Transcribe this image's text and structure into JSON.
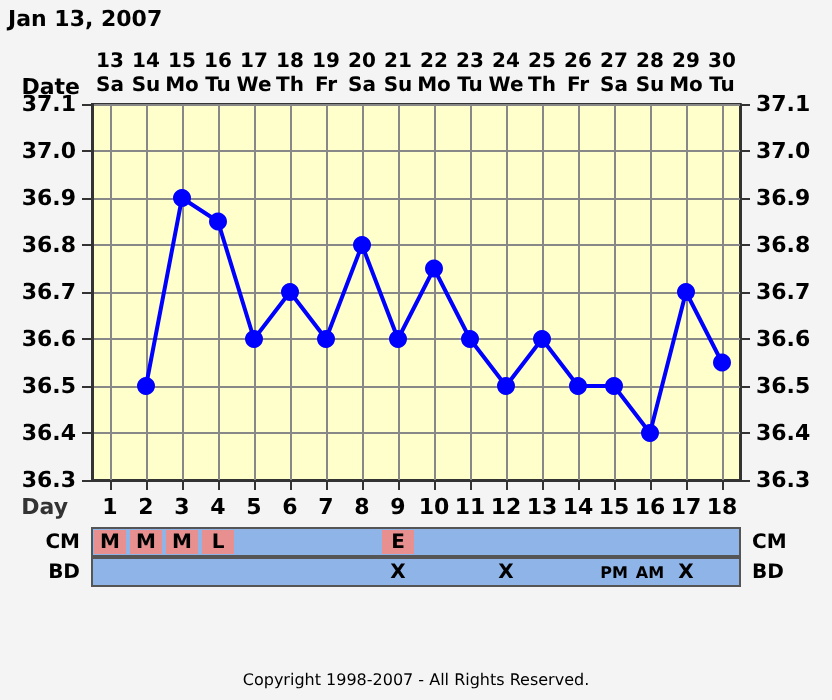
{
  "chart_data": {
    "type": "line",
    "title": "Jan 13, 2007",
    "xlabel": "Day",
    "x": [
      2,
      3,
      4,
      5,
      6,
      7,
      8,
      9,
      10,
      11,
      12,
      13,
      14,
      15,
      16,
      17,
      18
    ],
    "series": [
      {
        "color": "#0000ff",
        "values": [
          36.5,
          36.9,
          36.85,
          36.6,
          36.7,
          36.6,
          36.8,
          36.6,
          36.75,
          36.6,
          36.5,
          36.6,
          36.5,
          36.5,
          36.4,
          36.7,
          36.55
        ]
      }
    ],
    "xlim": [
      0.5,
      18.5
    ],
    "xticks": [
      1,
      2,
      3,
      4,
      5,
      6,
      7,
      8,
      9,
      10,
      11,
      12,
      13,
      14,
      15,
      16,
      17,
      18
    ],
    "ylim": [
      36.3,
      37.1
    ],
    "yticks": [
      {
        "value": 36.3,
        "label": "36.3"
      },
      {
        "value": 36.4,
        "label": "36.4"
      },
      {
        "value": 36.5,
        "label": "36.5"
      },
      {
        "value": 36.6,
        "label": "36.6"
      },
      {
        "value": 36.7,
        "label": "36.7"
      },
      {
        "value": 36.8,
        "label": "36.8"
      },
      {
        "value": 36.9,
        "label": "36.9"
      },
      {
        "value": 37.0,
        "label": "37.0"
      },
      {
        "value": 37.1,
        "label": "37.1"
      }
    ],
    "y2lim": [
      36.3,
      37.1
    ],
    "y2ticks": [
      {
        "value": 36.3,
        "label": "36.3"
      },
      {
        "value": 36.4,
        "label": "36.4"
      },
      {
        "value": 36.5,
        "label": "36.5"
      },
      {
        "value": 36.6,
        "label": "36.6"
      },
      {
        "value": 36.7,
        "label": "36.7"
      },
      {
        "value": 36.8,
        "label": "36.8"
      },
      {
        "value": 36.9,
        "label": "36.9"
      },
      {
        "value": 37.0,
        "label": "37.0"
      },
      {
        "value": 37.1,
        "label": "37.1"
      }
    ],
    "grid": true,
    "marker": "circle",
    "line_style": "solid",
    "annotations": [
      "Date",
      "13 Sa",
      "14 Su",
      "15 Mo",
      "16 Tu",
      "17 We",
      "18 Th",
      "19 Fr",
      "20 Sa",
      "21 Su",
      "22 Mo",
      "23 Tu",
      "24 We",
      "25 Th",
      "26 Fr",
      "27 Sa",
      "28 Su",
      "29 Mo",
      "30 Tu",
      "CM",
      "M",
      "M",
      "M",
      "L",
      null,
      null,
      null,
      null,
      "E",
      null,
      null,
      null,
      null,
      null,
      null,
      null,
      null,
      null,
      "BD",
      null,
      null,
      null,
      null,
      null,
      null,
      null,
      null,
      "X",
      null,
      null,
      "X",
      null,
      null,
      "PM",
      "AM",
      "X",
      null,
      "Copyright 1998-2007 - All Rights Reserved."
    ]
  }
}
